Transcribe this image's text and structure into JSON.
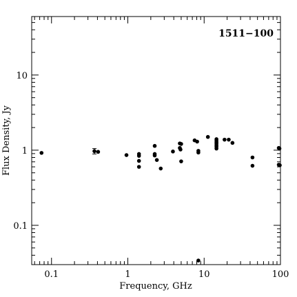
{
  "chart_data": {
    "type": "scatter",
    "title": "1511−100",
    "xlabel": "Frequency, GHz",
    "ylabel": "Flux Density, Jy",
    "x_scale": "log",
    "y_scale": "log",
    "xlim": [
      0.055,
      100
    ],
    "ylim": [
      0.03,
      60
    ],
    "x_tick_labels": [
      {
        "value": 0.1,
        "label": "0.1"
      },
      {
        "value": 1,
        "label": "1"
      },
      {
        "value": 10,
        "label": "10"
      },
      {
        "value": 100,
        "label": "100"
      }
    ],
    "y_tick_labels": [
      {
        "value": 0.1,
        "label": "0.1"
      },
      {
        "value": 1,
        "label": "1"
      },
      {
        "value": 10,
        "label": "10"
      }
    ],
    "grid": false,
    "marker_color": "#000000",
    "points": [
      {
        "x": 0.074,
        "y": 0.92
      },
      {
        "x": 0.365,
        "y": 0.97,
        "err": 0.08
      },
      {
        "x": 0.408,
        "y": 0.95
      },
      {
        "x": 0.96,
        "y": 0.86
      },
      {
        "x": 1.4,
        "y": 0.89
      },
      {
        "x": 1.4,
        "y": 0.84
      },
      {
        "x": 1.4,
        "y": 0.72
      },
      {
        "x": 1.4,
        "y": 0.6
      },
      {
        "x": 2.25,
        "y": 1.14
      },
      {
        "x": 2.25,
        "y": 0.89
      },
      {
        "x": 2.25,
        "y": 0.85
      },
      {
        "x": 2.4,
        "y": 0.74
      },
      {
        "x": 2.7,
        "y": 0.57
      },
      {
        "x": 3.9,
        "y": 0.96
      },
      {
        "x": 4.8,
        "y": 1.23
      },
      {
        "x": 4.8,
        "y": 1.07
      },
      {
        "x": 4.9,
        "y": 1.02
      },
      {
        "x": 5.0,
        "y": 1.21
      },
      {
        "x": 5.0,
        "y": 0.71
      },
      {
        "x": 7.5,
        "y": 1.35
      },
      {
        "x": 8.1,
        "y": 1.3
      },
      {
        "x": 8.4,
        "y": 0.98
      },
      {
        "x": 8.4,
        "y": 0.93
      },
      {
        "x": 8.4,
        "y": 0.034
      },
      {
        "x": 11.2,
        "y": 1.5
      },
      {
        "x": 14.5,
        "y": 1.4
      },
      {
        "x": 14.5,
        "y": 1.33
      },
      {
        "x": 14.5,
        "y": 1.27
      },
      {
        "x": 14.5,
        "y": 1.22
      },
      {
        "x": 14.5,
        "y": 1.16
      },
      {
        "x": 14.5,
        "y": 1.11
      },
      {
        "x": 14.5,
        "y": 1.05
      },
      {
        "x": 18.5,
        "y": 1.38
      },
      {
        "x": 21,
        "y": 1.38
      },
      {
        "x": 23.5,
        "y": 1.25
      },
      {
        "x": 43,
        "y": 0.8
      },
      {
        "x": 43,
        "y": 0.62
      },
      {
        "x": 95,
        "y": 1.07
      },
      {
        "x": 97,
        "y": 1.05
      },
      {
        "x": 95,
        "y": 0.64
      },
      {
        "x": 98,
        "y": 0.63
      }
    ]
  }
}
